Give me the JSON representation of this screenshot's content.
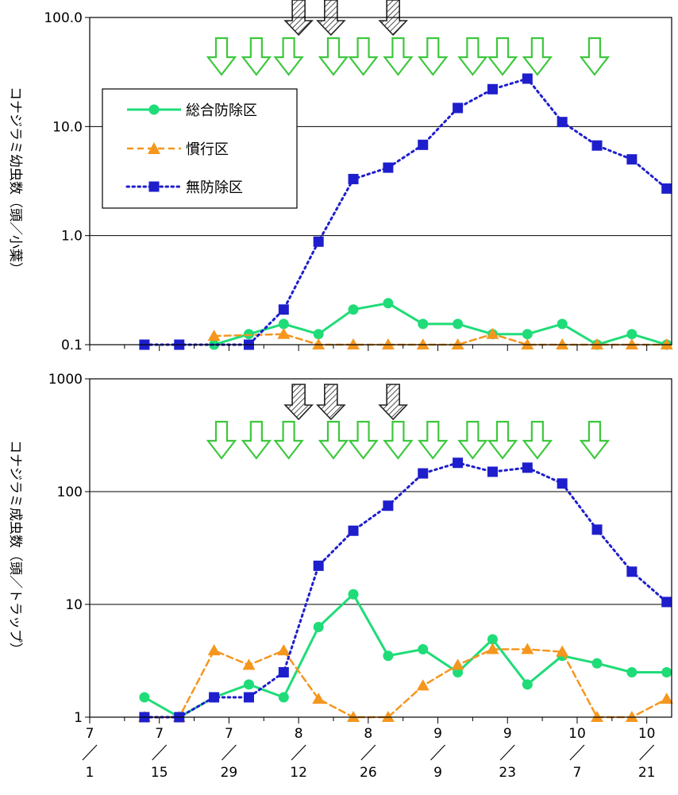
{
  "colors": {
    "integrated": "#1fdc78",
    "conventional": "#f5961e",
    "untreated": "#1e1ecd",
    "arrow_green": "#3cc83c",
    "arrow_hatch": "#222222"
  },
  "x_axis": {
    "tick_months": [
      "7",
      "7",
      "7",
      "8",
      "8",
      "9",
      "9",
      "10",
      "10"
    ],
    "tick_days": [
      "1",
      "15",
      "29",
      "12",
      "26",
      "9",
      "23",
      "7",
      "21"
    ],
    "tick_day_index": [
      0,
      14,
      28,
      42,
      56,
      70,
      84,
      98,
      112
    ],
    "range_day_index": [
      0,
      117
    ]
  },
  "legend": {
    "items": [
      {
        "key": "integrated",
        "label": "総合防除区",
        "marker": "circle",
        "dash": "solid"
      },
      {
        "key": "conventional",
        "label": "慣行区",
        "marker": "triangle",
        "dash": "dashed"
      },
      {
        "key": "untreated",
        "label": "無防除区",
        "marker": "square",
        "dash": "dotted"
      }
    ]
  },
  "arrows": {
    "green_day_index": [
      26.5,
      33.5,
      40,
      49,
      55,
      62,
      69,
      77,
      83,
      90,
      101.5
    ],
    "hatched_day_index": [
      42,
      48.5,
      61
    ]
  },
  "chart_data": [
    {
      "type": "line",
      "ylabel": "コナジラミ幼虫数（頭／小葉）",
      "yscale": "log",
      "ylim": [
        0.1,
        100
      ],
      "yticks": [
        "0.1",
        "1.0",
        "10.0",
        "100.0"
      ],
      "grid": "horizontal",
      "legend_position": "left",
      "x_day_index": [
        11,
        18,
        25,
        32,
        39,
        46,
        53,
        60,
        67,
        74,
        81,
        88,
        95,
        102,
        109,
        116
      ],
      "series": [
        {
          "key": "integrated",
          "name": "総合防除区",
          "values": [
            null,
            null,
            0.1,
            0.125,
            0.155,
            0.125,
            0.21,
            0.24,
            0.155,
            0.155,
            0.125,
            0.125,
            0.155,
            0.1,
            0.125,
            0.1
          ]
        },
        {
          "key": "conventional",
          "name": "慣行区",
          "values": [
            null,
            null,
            0.12,
            null,
            0.125,
            0.1,
            0.1,
            0.1,
            0.1,
            0.1,
            0.125,
            0.1,
            0.1,
            0.1,
            0.1,
            0.1
          ]
        },
        {
          "key": "untreated",
          "name": "無防除区",
          "values": [
            0.1,
            0.1,
            null,
            0.1,
            0.21,
            0.88,
            3.3,
            4.2,
            6.8,
            14.8,
            22,
            27.5,
            11,
            6.7,
            5.0,
            2.7
          ]
        }
      ]
    },
    {
      "type": "line",
      "ylabel": "コナジラミ成虫数（頭／トラップ）",
      "yscale": "log",
      "ylim": [
        1,
        1000
      ],
      "yticks": [
        "1",
        "10",
        "100",
        "1000"
      ],
      "grid": "horizontal",
      "x_day_index": [
        11,
        18,
        25,
        32,
        39,
        46,
        53,
        60,
        67,
        74,
        81,
        88,
        95,
        102,
        109,
        116
      ],
      "series": [
        {
          "key": "integrated",
          "name": "総合防除区",
          "values": [
            1.5,
            1.0,
            1.5,
            1.95,
            1.5,
            6.3,
            12.3,
            3.5,
            4.0,
            2.5,
            4.9,
            1.95,
            3.5,
            3.0,
            2.5,
            2.5
          ]
        },
        {
          "key": "conventional",
          "name": "慣行区",
          "values": [
            1.0,
            1.0,
            3.9,
            2.9,
            3.9,
            1.45,
            1.0,
            1.0,
            1.9,
            2.9,
            4.0,
            4.0,
            3.8,
            1.0,
            1.0,
            1.45
          ]
        },
        {
          "key": "untreated",
          "name": "無防除区",
          "values": [
            1.0,
            1.0,
            1.5,
            1.5,
            2.5,
            22,
            45,
            75,
            145,
            180,
            150,
            163,
            118,
            46,
            19.5,
            10.5
          ]
        }
      ]
    }
  ]
}
